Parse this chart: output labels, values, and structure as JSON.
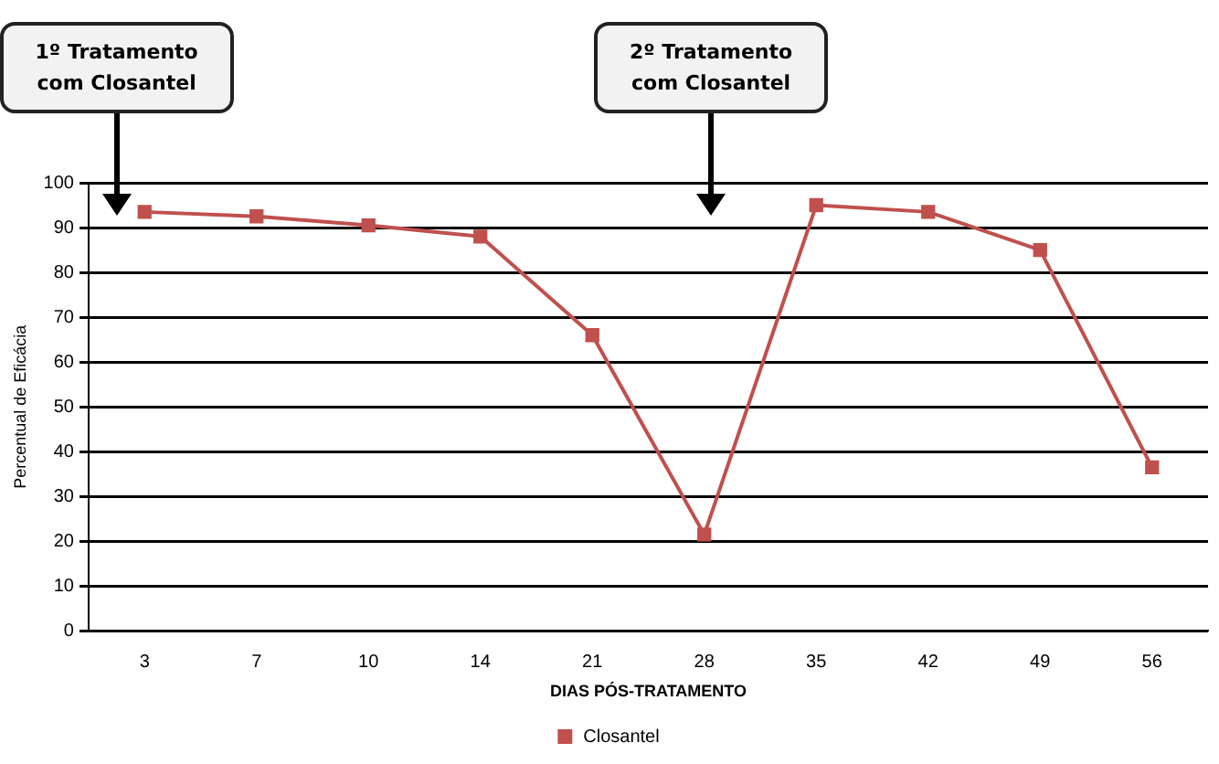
{
  "chart_data": {
    "type": "line",
    "xlabel": "DIAS PÓS-TRATAMENTO",
    "ylabel": "Percentual de Eficácia",
    "categories": [
      "3",
      "7",
      "10",
      "14",
      "21",
      "28",
      "35",
      "42",
      "49",
      "56"
    ],
    "series": [
      {
        "name": "Closantel",
        "color": "#c0504d",
        "values": [
          93.5,
          92.5,
          90.5,
          88,
          66,
          21.5,
          95,
          93.5,
          85,
          36.5
        ]
      }
    ],
    "ylim": [
      0,
      100
    ],
    "yticks": [
      0,
      10,
      20,
      30,
      40,
      50,
      60,
      70,
      80,
      90,
      100
    ],
    "grid": "y",
    "legend": "bottom",
    "marker": "square",
    "annotations": [
      "1º Tratamento com Closantel",
      "2º Tratamento com Closantel"
    ]
  }
}
